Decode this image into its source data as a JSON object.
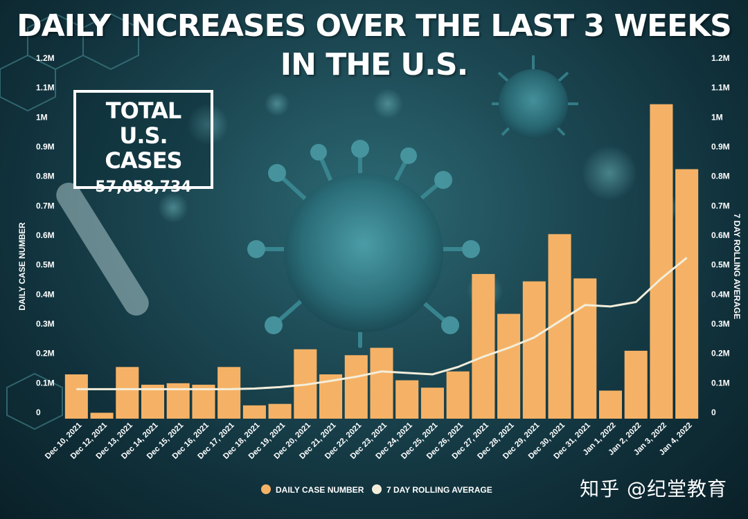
{
  "chart_data": {
    "type": "bar",
    "title": "DAILY INCREASES OVER THE LAST 3 WEEKS IN THE U.S.",
    "ylabel": "DAILY CASE NUMBER",
    "y2label": "7 DAY ROLLING AVERAGE",
    "ylim": [
      0,
      1200000
    ],
    "yticks": [
      0,
      100000,
      200000,
      300000,
      400000,
      500000,
      600000,
      700000,
      800000,
      900000,
      1000000,
      1100000,
      1200000
    ],
    "ytick_labels": [
      "0",
      "0.1M",
      "0.2M",
      "0.3M",
      "0.4M",
      "0.5M",
      "0.6M",
      "0.7M",
      "0.8M",
      "0.9M",
      "1M",
      "1.1M",
      "1.2M"
    ],
    "categories": [
      "Dec 10, 2021",
      "Dec 12, 2021",
      "Dec 13, 2021",
      "Dec 14, 2021",
      "Dec 15, 2021",
      "Dec 16, 2021",
      "Dec 17, 2021",
      "Dec 18, 2021",
      "Dec 19, 2021",
      "Dec 20, 2021",
      "Dec 21, 2021",
      "Dec 22, 2021",
      "Dec 23, 2021",
      "Dec 24, 2021",
      "Dec 25, 2021",
      "Dec 26, 2021",
      "Dec 27, 2021",
      "Dec 28, 2021",
      "Dec 29, 2021",
      "Dec 30, 2021",
      "Dec 31, 2021",
      "Jan 1, 2022",
      "Jan 2, 2022",
      "Jan 3, 2022",
      "Jan 4, 2022"
    ],
    "series": [
      {
        "name": "DAILY CASE NUMBER",
        "kind": "bar",
        "color": "#f5b266",
        "values": [
          150000,
          20000,
          175000,
          115000,
          120000,
          115000,
          175000,
          45000,
          50000,
          235000,
          150000,
          215000,
          240000,
          130000,
          105000,
          160000,
          490000,
          355000,
          465000,
          625000,
          475000,
          95000,
          230000,
          1065000,
          845000
        ]
      },
      {
        "name": "7 DAY ROLLING AVERAGE",
        "kind": "line",
        "color": "#f3eedb",
        "values": [
          100000,
          100000,
          100000,
          100000,
          100000,
          100000,
          100000,
          102000,
          107000,
          115000,
          128000,
          142000,
          160000,
          155000,
          150000,
          175000,
          210000,
          240000,
          275000,
          330000,
          385000,
          380000,
          395000,
          475000,
          545000
        ]
      }
    ],
    "legend_position": "bottom",
    "grid": false
  },
  "total_box": {
    "label": "TOTAL U.S. CASES",
    "value": "57,058,734"
  },
  "watermark": "知乎 @纪堂教育",
  "colors": {
    "bar": "#f5b266",
    "line": "#f3eedb",
    "text": "#ffffff"
  }
}
